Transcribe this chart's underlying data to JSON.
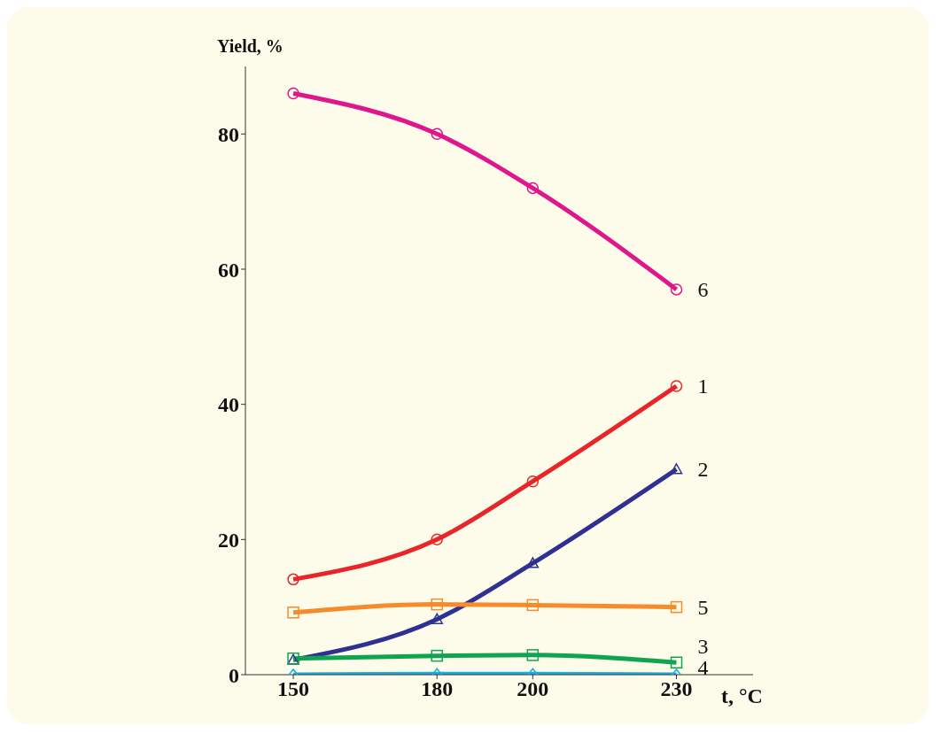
{
  "chart_data": {
    "type": "line",
    "ylabel": "Yield, %",
    "xlabel": "t, °C",
    "x": [
      150,
      180,
      200,
      230
    ],
    "xlim": [
      140,
      246
    ],
    "xticks": [
      150,
      180,
      200,
      230
    ],
    "ylim": [
      0,
      90
    ],
    "yticks": [
      0,
      20,
      40,
      60,
      80
    ],
    "grid": false,
    "legend": false,
    "line_style": "solid",
    "series": [
      {
        "name": "6",
        "color": "#e0168c",
        "marker": "circle",
        "values": [
          86,
          80,
          72,
          57
        ]
      },
      {
        "name": "1",
        "color": "#e8262a",
        "marker": "circle",
        "values": [
          14.1,
          20,
          28.6,
          42.7
        ]
      },
      {
        "name": "2",
        "color": "#2e3192",
        "marker": "triangle",
        "values": [
          2.2,
          8.2,
          16.5,
          30.4
        ]
      },
      {
        "name": "5",
        "color": "#f58b2a",
        "marker": "square",
        "values": [
          9.2,
          10.4,
          10.3,
          10
        ]
      },
      {
        "name": "3",
        "color": "#0fa550",
        "marker": "square",
        "values": [
          2.4,
          2.8,
          2.9,
          1.8
        ]
      },
      {
        "name": "4",
        "color": "#1aaee8",
        "marker": "diamond",
        "values": [
          0,
          0.1,
          0.1,
          0
        ]
      }
    ]
  }
}
